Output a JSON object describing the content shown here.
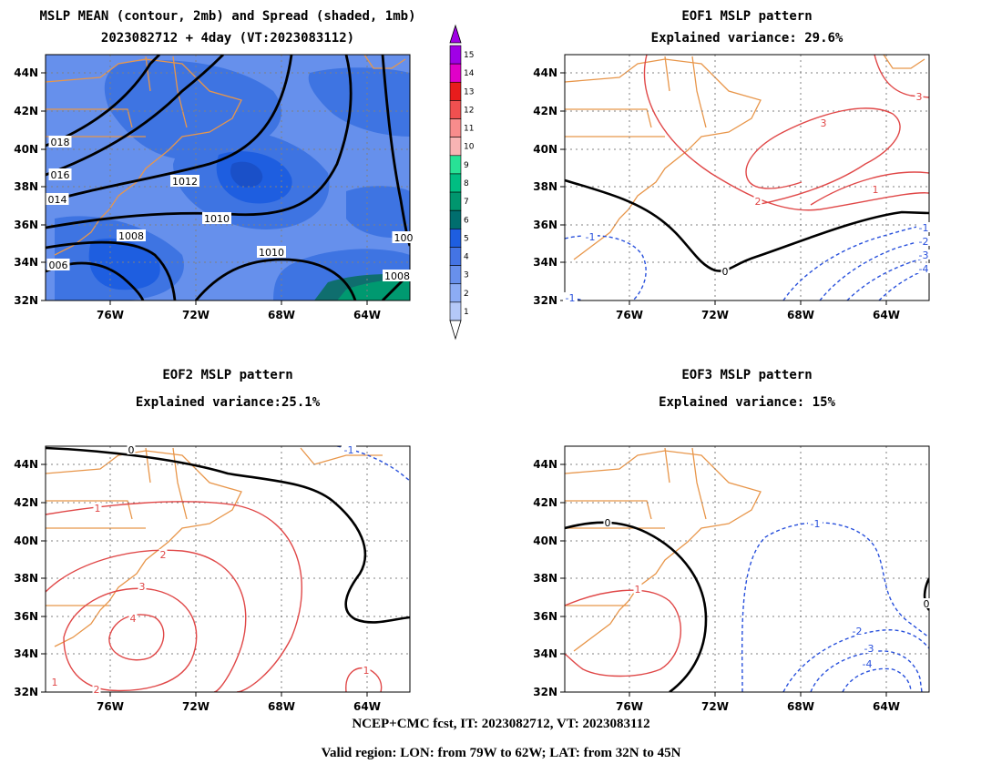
{
  "panels": [
    {
      "id": "mean",
      "title_lines": [
        "MSLP MEAN (contour, 2mb) and Spread (shaded, 1mb)",
        "2023082712 + 4day (VT:2023083112)"
      ]
    },
    {
      "id": "eof1",
      "title_lines": [
        "EOF1 MSLP pattern",
        "Explained variance: 29.6%"
      ]
    },
    {
      "id": "eof2",
      "title_lines": [
        "EOF2 MSLP pattern",
        "Explained variance:25.1%"
      ]
    },
    {
      "id": "eof3",
      "title_lines": [
        "EOF3 MSLP pattern",
        "Explained variance: 15%"
      ]
    }
  ],
  "axes": {
    "lon_ticks": [
      "76W",
      "72W",
      "68W",
      "64W"
    ],
    "lat_ticks": [
      "44N",
      "42N",
      "40N",
      "38N",
      "36N",
      "34N",
      "32N"
    ]
  },
  "colorbar": {
    "levels": [
      "1",
      "2",
      "3",
      "4",
      "5",
      "6",
      "7",
      "8",
      "9",
      "10",
      "11",
      "12",
      "13",
      "14",
      "15"
    ],
    "colors": [
      "#b4c8f8",
      "#8cacf4",
      "#6890ec",
      "#4474e4",
      "#1e5ee0",
      "#006e6e",
      "#00966e",
      "#00be82",
      "#28e296",
      "#f8b4b4",
      "#f88c8c",
      "#f05050",
      "#e81c1c",
      "#e000c8",
      "#a000e6"
    ]
  },
  "chart_data": [
    {
      "type": "contour",
      "panel": "mean",
      "xlim": [
        "79W",
        "62W"
      ],
      "ylim": [
        "32N",
        "45N"
      ],
      "contour_labels": [
        "018",
        "016",
        "014",
        "1012",
        "1010",
        "1008",
        "1010",
        "006",
        "100",
        "1008"
      ],
      "shading_range": [
        1,
        6
      ]
    },
    {
      "type": "contour",
      "panel": "eof1",
      "xlim": [
        "79W",
        "62W"
      ],
      "ylim": [
        "32N",
        "45N"
      ],
      "contour_labels": [
        "3",
        "3",
        "2",
        "1",
        "0",
        "-1",
        "-1",
        "-1",
        "-2",
        "-3",
        "-4"
      ]
    },
    {
      "type": "contour",
      "panel": "eof2",
      "xlim": [
        "79W",
        "62W"
      ],
      "ylim": [
        "32N",
        "45N"
      ],
      "contour_labels": [
        "0",
        "-1",
        "1",
        "2",
        "3",
        "4",
        "2",
        "1",
        "1"
      ]
    },
    {
      "type": "contour",
      "panel": "eof3",
      "xlim": [
        "79W",
        "62W"
      ],
      "ylim": [
        "32N",
        "45N"
      ],
      "contour_labels": [
        "0",
        "1",
        "-1",
        "-2",
        "-3",
        "-4",
        "0"
      ]
    }
  ],
  "footer": {
    "line1": "NCEP+CMC fcst, IT: 2023082712, VT: 2023083112",
    "line2": "Valid region: LON: from 79W to 62W; LAT: from 32N to 45N"
  }
}
